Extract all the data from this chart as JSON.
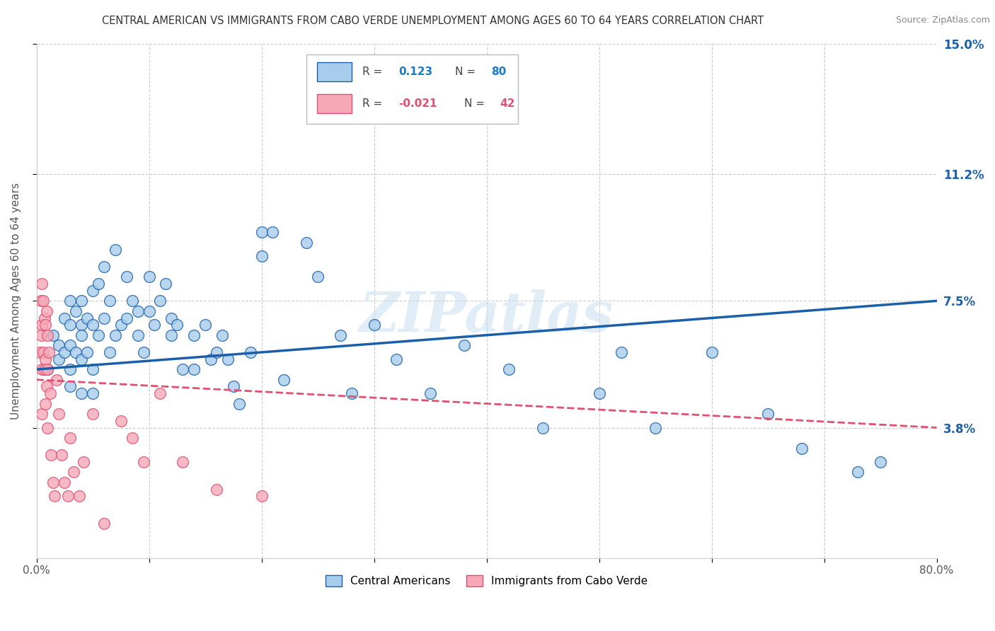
{
  "title": "CENTRAL AMERICAN VS IMMIGRANTS FROM CABO VERDE UNEMPLOYMENT AMONG AGES 60 TO 64 YEARS CORRELATION CHART",
  "source": "Source: ZipAtlas.com",
  "ylabel": "Unemployment Among Ages 60 to 64 years",
  "xlim": [
    0,
    0.8
  ],
  "ylim": [
    0,
    0.15
  ],
  "yticks": [
    0.038,
    0.075,
    0.112,
    0.15
  ],
  "ytick_labels": [
    "3.8%",
    "7.5%",
    "11.2%",
    "15.0%"
  ],
  "xticks": [
    0.0,
    0.1,
    0.2,
    0.3,
    0.4,
    0.5,
    0.6,
    0.7,
    0.8
  ],
  "xtick_labels": [
    "0.0%",
    "",
    "",
    "",
    "",
    "",
    "",
    "",
    "80.0%"
  ],
  "blue_color": "#A8CCEC",
  "pink_color": "#F4A8B8",
  "blue_line_color": "#1A5FA8",
  "pink_line_color": "#E05070",
  "watermark": "ZIPatlas",
  "blue_R": 0.123,
  "blue_N": 80,
  "pink_R": -0.021,
  "pink_N": 42,
  "blue_scatter_x": [
    0.01,
    0.015,
    0.02,
    0.02,
    0.025,
    0.025,
    0.03,
    0.03,
    0.03,
    0.03,
    0.03,
    0.035,
    0.035,
    0.04,
    0.04,
    0.04,
    0.04,
    0.04,
    0.045,
    0.045,
    0.05,
    0.05,
    0.05,
    0.05,
    0.055,
    0.055,
    0.06,
    0.06,
    0.065,
    0.065,
    0.07,
    0.07,
    0.075,
    0.08,
    0.08,
    0.085,
    0.09,
    0.09,
    0.095,
    0.1,
    0.1,
    0.105,
    0.11,
    0.115,
    0.12,
    0.12,
    0.125,
    0.13,
    0.14,
    0.14,
    0.15,
    0.155,
    0.16,
    0.165,
    0.17,
    0.175,
    0.18,
    0.19,
    0.2,
    0.2,
    0.21,
    0.22,
    0.24,
    0.25,
    0.27,
    0.28,
    0.3,
    0.32,
    0.35,
    0.38,
    0.42,
    0.45,
    0.5,
    0.52,
    0.55,
    0.6,
    0.65,
    0.68,
    0.73,
    0.75
  ],
  "blue_scatter_y": [
    0.055,
    0.065,
    0.062,
    0.058,
    0.07,
    0.06,
    0.068,
    0.062,
    0.055,
    0.075,
    0.05,
    0.072,
    0.06,
    0.075,
    0.068,
    0.058,
    0.048,
    0.065,
    0.07,
    0.06,
    0.078,
    0.068,
    0.055,
    0.048,
    0.08,
    0.065,
    0.085,
    0.07,
    0.075,
    0.06,
    0.09,
    0.065,
    0.068,
    0.082,
    0.07,
    0.075,
    0.065,
    0.072,
    0.06,
    0.082,
    0.072,
    0.068,
    0.075,
    0.08,
    0.065,
    0.07,
    0.068,
    0.055,
    0.065,
    0.055,
    0.068,
    0.058,
    0.06,
    0.065,
    0.058,
    0.05,
    0.045,
    0.06,
    0.095,
    0.088,
    0.095,
    0.052,
    0.092,
    0.082,
    0.065,
    0.048,
    0.068,
    0.058,
    0.048,
    0.062,
    0.055,
    0.038,
    0.048,
    0.06,
    0.038,
    0.06,
    0.042,
    0.032,
    0.025,
    0.028
  ],
  "pink_scatter_x": [
    0.003,
    0.004,
    0.004,
    0.005,
    0.005,
    0.005,
    0.005,
    0.006,
    0.006,
    0.007,
    0.007,
    0.008,
    0.008,
    0.008,
    0.009,
    0.009,
    0.01,
    0.01,
    0.01,
    0.011,
    0.012,
    0.013,
    0.015,
    0.016,
    0.018,
    0.02,
    0.022,
    0.025,
    0.028,
    0.03,
    0.033,
    0.038,
    0.042,
    0.05,
    0.06,
    0.075,
    0.085,
    0.095,
    0.11,
    0.13,
    0.16,
    0.2
  ],
  "pink_scatter_y": [
    0.06,
    0.075,
    0.065,
    0.08,
    0.068,
    0.055,
    0.042,
    0.075,
    0.06,
    0.07,
    0.055,
    0.068,
    0.058,
    0.045,
    0.072,
    0.05,
    0.065,
    0.055,
    0.038,
    0.06,
    0.048,
    0.03,
    0.022,
    0.018,
    0.052,
    0.042,
    0.03,
    0.022,
    0.018,
    0.035,
    0.025,
    0.018,
    0.028,
    0.042,
    0.01,
    0.04,
    0.035,
    0.028,
    0.048,
    0.028,
    0.02,
    0.018
  ],
  "blue_trend_start_y": 0.055,
  "blue_trend_end_y": 0.075,
  "pink_trend_start_y": 0.052,
  "pink_trend_end_y": 0.038
}
